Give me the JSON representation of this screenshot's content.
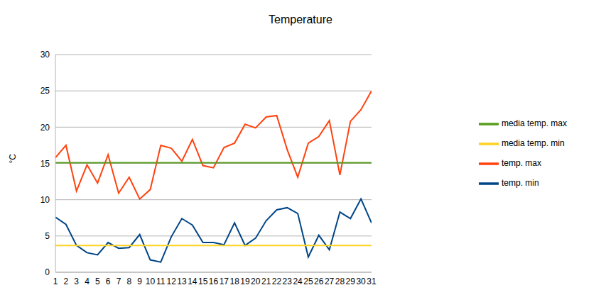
{
  "chart_data": {
    "type": "line",
    "title": "Temperature",
    "y_label": "°C",
    "x": [
      1,
      2,
      3,
      4,
      5,
      6,
      7,
      8,
      9,
      10,
      11,
      12,
      13,
      14,
      15,
      16,
      17,
      18,
      19,
      20,
      21,
      22,
      23,
      24,
      25,
      26,
      27,
      28,
      29,
      30,
      31
    ],
    "xlim": [
      1,
      31
    ],
    "xticks": [
      1,
      2,
      3,
      4,
      5,
      6,
      7,
      8,
      9,
      10,
      11,
      12,
      13,
      14,
      15,
      16,
      17,
      18,
      19,
      20,
      21,
      22,
      23,
      24,
      25,
      26,
      27,
      28,
      29,
      30,
      31
    ],
    "ylim": [
      0,
      30
    ],
    "yticks": [
      0,
      5,
      10,
      15,
      20,
      25,
      30
    ],
    "grid": true,
    "legend": "right",
    "series": [
      {
        "name": "temp. min",
        "color": "#004586",
        "values": [
          7.6,
          6.6,
          3.7,
          2.7,
          2.4,
          4.1,
          3.3,
          3.4,
          5.2,
          1.7,
          1.4,
          4.9,
          7.4,
          6.5,
          4.1,
          4.1,
          3.8,
          6.8,
          3.7,
          4.7,
          7.1,
          8.6,
          8.9,
          8.1,
          2.1,
          5.1,
          3.1,
          8.3,
          7.4,
          10.1,
          6.8
        ]
      },
      {
        "name": "temp. max",
        "color": "#ff420e",
        "values": [
          15.8,
          17.5,
          11.2,
          14.8,
          12.3,
          16.2,
          10.9,
          13.1,
          10.1,
          11.4,
          17.5,
          17.1,
          15.3,
          18.3,
          14.7,
          14.4,
          17.2,
          17.8,
          20.4,
          19.9,
          21.4,
          21.6,
          16.9,
          13.1,
          17.8,
          18.7,
          20.9,
          13.4,
          20.8,
          22.4,
          25.0
        ]
      },
      {
        "name": "media temp. min",
        "color": "#ffd320",
        "values": [
          3.7,
          3.7,
          3.7,
          3.7,
          3.7,
          3.7,
          3.7,
          3.7,
          3.7,
          3.7,
          3.7,
          3.7,
          3.7,
          3.7,
          3.7,
          3.7,
          3.7,
          3.7,
          3.7,
          3.7,
          3.7,
          3.7,
          3.7,
          3.7,
          3.7,
          3.7,
          3.7,
          3.7,
          3.7,
          3.7,
          3.7
        ]
      },
      {
        "name": "media temp. max",
        "color": "#579d1c",
        "values": [
          15.1,
          15.1,
          15.1,
          15.1,
          15.1,
          15.1,
          15.1,
          15.1,
          15.1,
          15.1,
          15.1,
          15.1,
          15.1,
          15.1,
          15.1,
          15.1,
          15.1,
          15.1,
          15.1,
          15.1,
          15.1,
          15.1,
          15.1,
          15.1,
          15.1,
          15.1,
          15.1,
          15.1,
          15.1,
          15.1,
          15.1
        ]
      }
    ]
  }
}
